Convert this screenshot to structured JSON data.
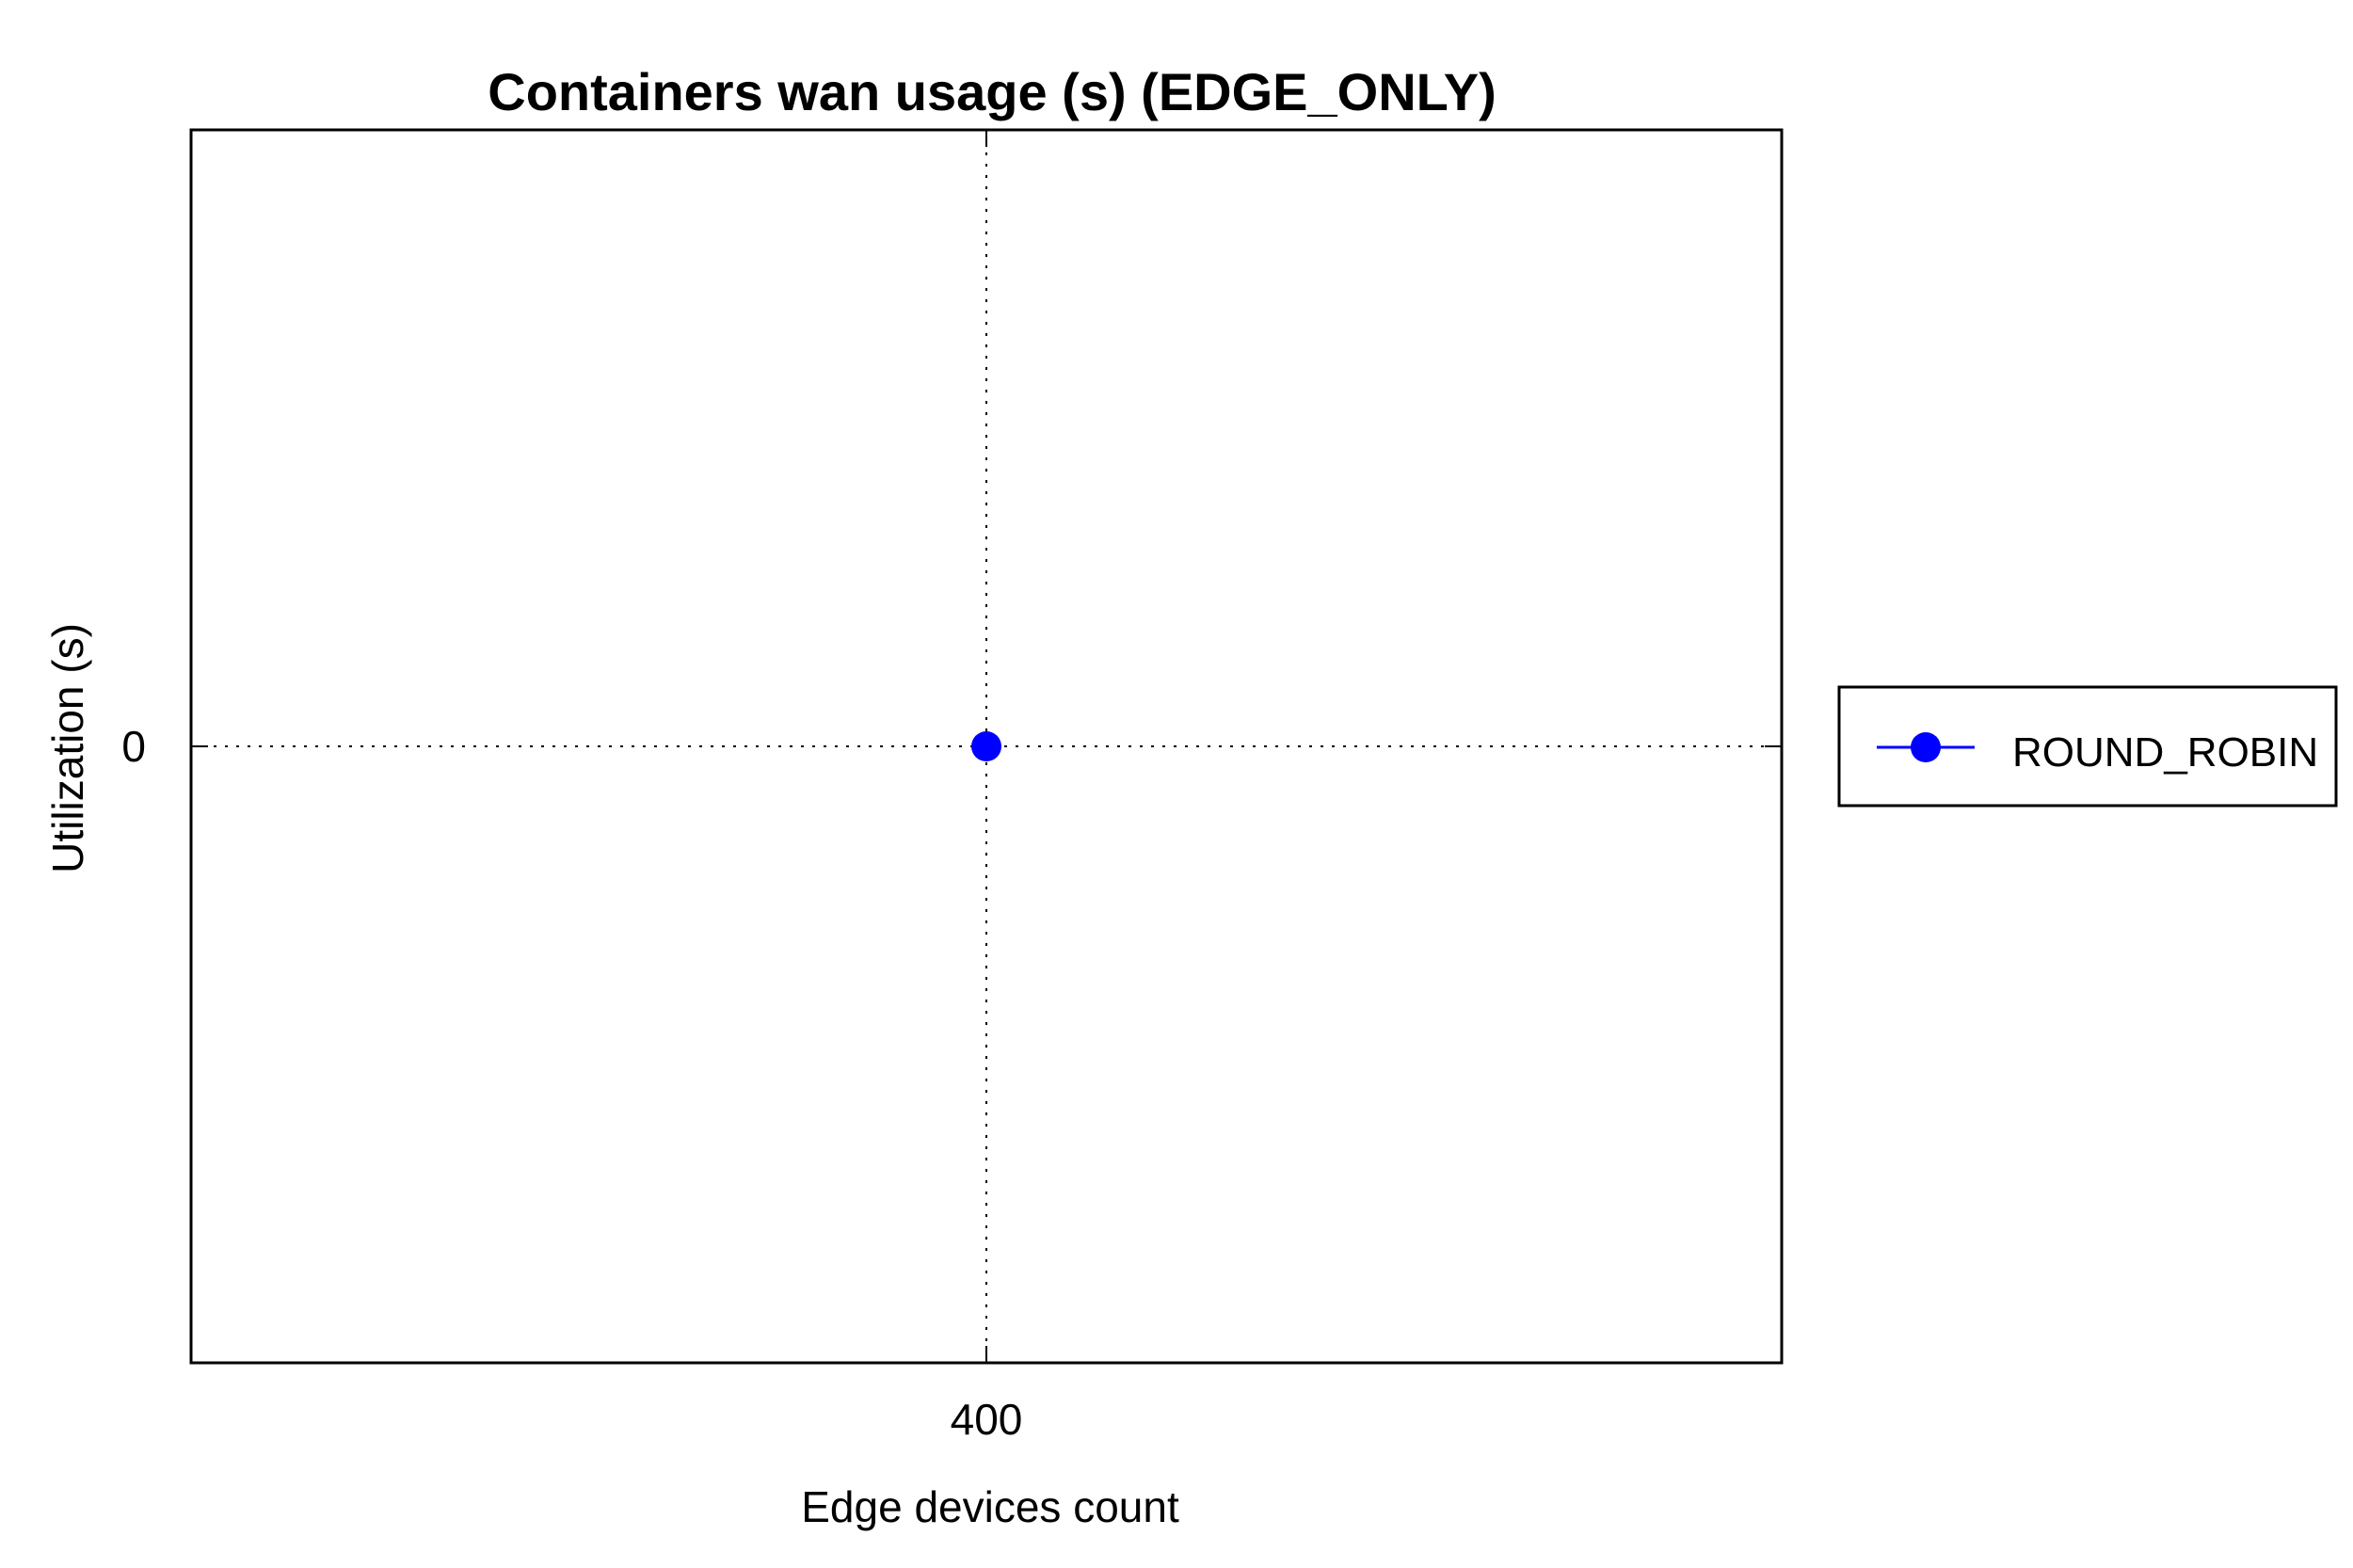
{
  "chart_data": {
    "type": "line",
    "title": "Containers wan usage (s) (EDGE_ONLY)",
    "xlabel": "Edge devices count",
    "ylabel": "Utilization (s)",
    "x_ticks": [
      "400"
    ],
    "y_ticks": [
      "0"
    ],
    "xlim": [
      399,
      401
    ],
    "ylim": [
      -1,
      1
    ],
    "grid": true,
    "legend_position": "right",
    "series": [
      {
        "name": "ROUND_ROBIN",
        "color": "#0000ff",
        "marker": "circle",
        "x": [
          400
        ],
        "y": [
          0
        ]
      }
    ]
  }
}
